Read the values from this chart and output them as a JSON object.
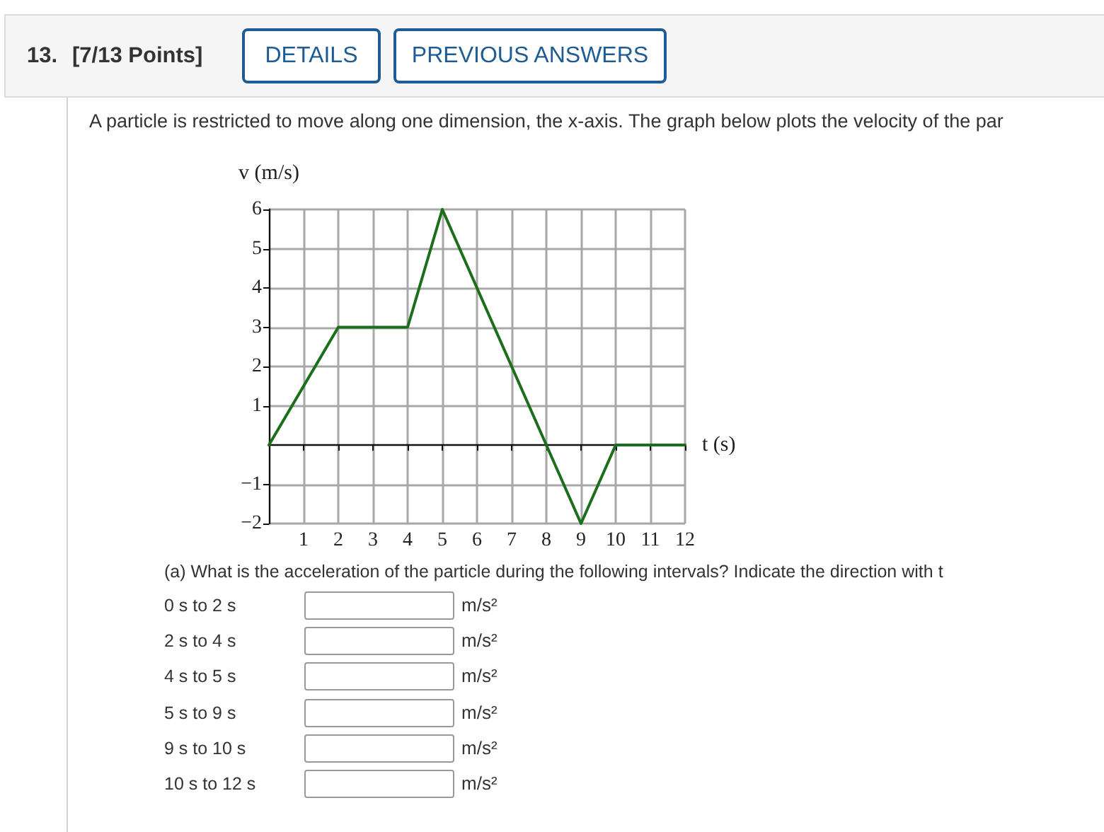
{
  "chart_data": {
    "type": "line",
    "xlabel": "t (s)",
    "ylabel": "v (m/s)",
    "x": [
      0,
      2,
      4,
      5,
      9,
      10,
      12
    ],
    "values": [
      0,
      3,
      3,
      6,
      -2,
      0,
      0
    ],
    "color": "#1b6f1b",
    "xlim": [
      0,
      12
    ],
    "ylim": [
      -2,
      6
    ],
    "xticks": [
      1,
      2,
      3,
      4,
      5,
      6,
      7,
      8,
      9,
      10,
      11,
      12
    ],
    "yticks": [
      {
        "value": -2,
        "label": "−2"
      },
      {
        "value": -1,
        "label": "−1"
      },
      1,
      2,
      3,
      4,
      5,
      6
    ],
    "grid": true,
    "marker": "none",
    "line_style": "solid",
    "annotations": [
      "13.",
      "[7/13 Points]",
      "DETAILS",
      "PREVIOUS ANSWERS",
      "A particle is restricted to move along one dimension, the x-axis. The graph below plots the velocity of the par",
      "(a) What is the acceleration of the particle during the following intervals? Indicate the direction with t",
      "0 s to 2 s",
      "m/s²",
      "2 s to 4 s",
      "m/s²",
      "4 s to 5 s",
      "m/s²",
      "5 s to 9 s",
      "m/s²",
      "9 s to 10 s",
      "m/s²",
      "10 s to 12 s",
      "m/s²"
    ]
  }
}
